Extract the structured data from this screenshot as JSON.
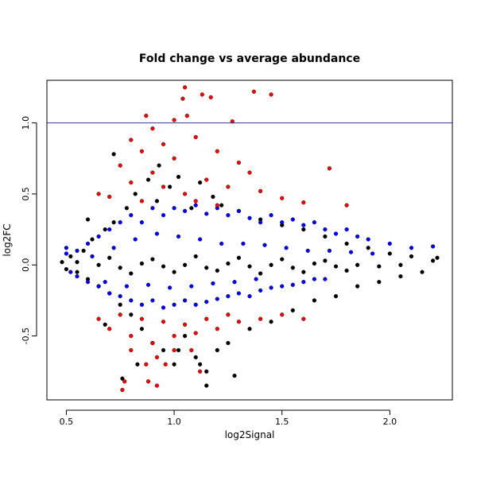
{
  "chart_data": {
    "type": "scatter",
    "title": "Fold change vs average abundance",
    "xlabel": "log2Signal",
    "ylabel": "log2FC",
    "xlim": [
      0.41,
      2.29
    ],
    "ylim": [
      -0.95,
      1.3
    ],
    "xticks": [
      0.5,
      1.0,
      1.5,
      2.0
    ],
    "xtick_labels": [
      "0.5",
      "1.0",
      "1.5",
      "2.0"
    ],
    "yticks": [
      -0.5,
      0.0,
      0.5,
      1.0
    ],
    "ytick_labels": [
      "-0.5",
      "0.0",
      "0.5",
      "1.0"
    ],
    "grid": false,
    "legend": "none",
    "reference_lines": [
      {
        "orientation": "horizontal",
        "y": 1.0,
        "color": "#3a3a99"
      }
    ],
    "series": [
      {
        "color": "#000000",
        "points": [
          [
            0.48,
            0.02
          ],
          [
            0.5,
            -0.03
          ],
          [
            0.52,
            0.06
          ],
          [
            0.55,
            -0.05
          ],
          [
            0.58,
            0.1
          ],
          [
            0.6,
            -0.1
          ],
          [
            0.62,
            0.18
          ],
          [
            0.65,
            -0.15
          ],
          [
            0.68,
            0.25
          ],
          [
            0.7,
            -0.2
          ],
          [
            0.72,
            0.3
          ],
          [
            0.75,
            -0.28
          ],
          [
            0.78,
            0.4
          ],
          [
            0.8,
            -0.35
          ],
          [
            0.82,
            0.5
          ],
          [
            0.85,
            -0.45
          ],
          [
            0.88,
            0.6
          ],
          [
            0.9,
            -0.55
          ],
          [
            0.92,
            0.45
          ],
          [
            0.95,
            -0.6
          ],
          [
            0.98,
            0.55
          ],
          [
            1.0,
            -0.7
          ],
          [
            1.02,
            0.62
          ],
          [
            1.05,
            -0.5
          ],
          [
            1.08,
            0.4
          ],
          [
            1.1,
            -0.65
          ],
          [
            1.12,
            0.58
          ],
          [
            1.15,
            -0.75
          ],
          [
            1.18,
            0.48
          ],
          [
            1.2,
            -0.6
          ],
          [
            1.22,
            0.42
          ],
          [
            1.25,
            -0.55
          ],
          [
            1.3,
            0.38
          ],
          [
            1.35,
            -0.45
          ],
          [
            1.4,
            0.32
          ],
          [
            1.45,
            -0.4
          ],
          [
            1.5,
            0.28
          ],
          [
            1.55,
            -0.32
          ],
          [
            1.6,
            0.25
          ],
          [
            1.65,
            -0.25
          ],
          [
            1.7,
            0.2
          ],
          [
            1.75,
            -0.22
          ],
          [
            1.8,
            0.15
          ],
          [
            1.85,
            -0.15
          ],
          [
            1.9,
            0.12
          ],
          [
            1.95,
            -0.12
          ],
          [
            2.0,
            0.08
          ],
          [
            2.05,
            -0.08
          ],
          [
            2.1,
            0.06
          ],
          [
            2.15,
            -0.05
          ],
          [
            2.2,
            0.03
          ],
          [
            2.22,
            0.05
          ],
          [
            0.55,
            0.02
          ],
          [
            0.65,
            0.0
          ],
          [
            0.75,
            -0.02
          ],
          [
            0.85,
            0.01
          ],
          [
            0.95,
            -0.01
          ],
          [
            1.05,
            0.0
          ],
          [
            1.15,
            -0.02
          ],
          [
            1.25,
            0.01
          ],
          [
            1.35,
            -0.01
          ],
          [
            1.45,
            0.0
          ],
          [
            1.55,
            -0.02
          ],
          [
            1.65,
            0.01
          ],
          [
            1.75,
            -0.01
          ],
          [
            1.85,
            0.0
          ],
          [
            1.95,
            -0.01
          ],
          [
            2.05,
            0.0
          ],
          [
            0.7,
            0.05
          ],
          [
            0.8,
            -0.06
          ],
          [
            0.9,
            0.04
          ],
          [
            1.0,
            -0.05
          ],
          [
            1.1,
            0.06
          ],
          [
            1.2,
            -0.04
          ],
          [
            1.3,
            0.05
          ],
          [
            1.4,
            -0.06
          ],
          [
            1.5,
            0.04
          ],
          [
            1.6,
            -0.05
          ],
          [
            1.7,
            0.03
          ],
          [
            1.8,
            -0.04
          ],
          [
            0.76,
            -0.8
          ],
          [
            1.15,
            -0.85
          ],
          [
            0.72,
            0.78
          ],
          [
            0.68,
            -0.42
          ],
          [
            0.6,
            0.32
          ],
          [
            1.28,
            -0.78
          ],
          [
            0.83,
            -0.7
          ],
          [
            1.02,
            -0.6
          ],
          [
            0.93,
            0.7
          ],
          [
            1.12,
            -0.7
          ]
        ]
      },
      {
        "color": "#0000ff",
        "points": [
          [
            0.5,
            0.08
          ],
          [
            0.55,
            0.1
          ],
          [
            0.6,
            0.15
          ],
          [
            0.65,
            0.2
          ],
          [
            0.7,
            0.25
          ],
          [
            0.75,
            0.3
          ],
          [
            0.8,
            0.35
          ],
          [
            0.85,
            0.3
          ],
          [
            0.9,
            0.4
          ],
          [
            0.95,
            0.35
          ],
          [
            1.0,
            0.4
          ],
          [
            1.05,
            0.38
          ],
          [
            1.1,
            0.42
          ],
          [
            1.15,
            0.36
          ],
          [
            1.2,
            0.4
          ],
          [
            1.25,
            0.35
          ],
          [
            1.3,
            0.38
          ],
          [
            1.35,
            0.33
          ],
          [
            1.4,
            0.3
          ],
          [
            1.45,
            0.35
          ],
          [
            1.5,
            0.3
          ],
          [
            1.55,
            0.32
          ],
          [
            1.6,
            0.28
          ],
          [
            1.65,
            0.3
          ],
          [
            1.7,
            0.25
          ],
          [
            1.75,
            0.22
          ],
          [
            1.8,
            0.25
          ],
          [
            1.85,
            0.2
          ],
          [
            1.9,
            0.18
          ],
          [
            2.0,
            0.15
          ],
          [
            2.1,
            0.12
          ],
          [
            2.2,
            0.13
          ],
          [
            0.55,
            -0.08
          ],
          [
            0.6,
            -0.12
          ],
          [
            0.65,
            -0.15
          ],
          [
            0.7,
            -0.2
          ],
          [
            0.75,
            -0.22
          ],
          [
            0.8,
            -0.25
          ],
          [
            0.85,
            -0.28
          ],
          [
            0.9,
            -0.25
          ],
          [
            0.95,
            -0.3
          ],
          [
            1.0,
            -0.28
          ],
          [
            1.05,
            -0.25
          ],
          [
            1.1,
            -0.28
          ],
          [
            1.15,
            -0.26
          ],
          [
            1.2,
            -0.24
          ],
          [
            1.25,
            -0.22
          ],
          [
            1.3,
            -0.2
          ],
          [
            1.35,
            -0.22
          ],
          [
            1.4,
            -0.18
          ],
          [
            1.45,
            -0.16
          ],
          [
            1.5,
            -0.15
          ],
          [
            1.55,
            -0.14
          ],
          [
            1.6,
            -0.12
          ],
          [
            1.65,
            -0.1
          ],
          [
            1.7,
            -0.1
          ],
          [
            0.5,
            0.12
          ],
          [
            0.52,
            -0.05
          ],
          [
            0.62,
            0.06
          ],
          [
            0.72,
            0.12
          ],
          [
            0.82,
            0.18
          ],
          [
            0.92,
            0.22
          ],
          [
            1.02,
            0.2
          ],
          [
            1.12,
            0.18
          ],
          [
            1.22,
            0.15
          ],
          [
            1.32,
            0.15
          ],
          [
            1.42,
            0.14
          ],
          [
            1.52,
            0.12
          ],
          [
            1.62,
            0.1
          ],
          [
            1.72,
            0.1
          ],
          [
            1.82,
            0.09
          ],
          [
            1.92,
            0.08
          ],
          [
            0.68,
            -0.12
          ],
          [
            0.78,
            -0.15
          ],
          [
            0.88,
            -0.14
          ],
          [
            0.98,
            -0.16
          ],
          [
            1.08,
            -0.15
          ],
          [
            1.18,
            -0.13
          ],
          [
            1.28,
            -0.12
          ],
          [
            1.38,
            -0.1
          ]
        ]
      },
      {
        "color": "#ff0000",
        "points": [
          [
            1.05,
            1.25
          ],
          [
            1.37,
            1.22
          ],
          [
            1.13,
            1.2
          ],
          [
            1.45,
            1.2
          ],
          [
            1.17,
            1.18
          ],
          [
            1.04,
            1.17
          ],
          [
            0.87,
            1.05
          ],
          [
            1.06,
            1.05
          ],
          [
            1.0,
            1.02
          ],
          [
            1.27,
            1.01
          ],
          [
            0.9,
            0.96
          ],
          [
            1.1,
            0.9
          ],
          [
            0.95,
            0.85
          ],
          [
            0.8,
            0.88
          ],
          [
            1.2,
            0.8
          ],
          [
            0.85,
            0.8
          ],
          [
            1.3,
            0.72
          ],
          [
            1.0,
            0.75
          ],
          [
            0.75,
            0.7
          ],
          [
            1.35,
            0.65
          ],
          [
            0.9,
            0.65
          ],
          [
            1.72,
            0.68
          ],
          [
            1.15,
            0.6
          ],
          [
            0.8,
            0.58
          ],
          [
            1.25,
            0.55
          ],
          [
            0.95,
            0.55
          ],
          [
            1.4,
            0.52
          ],
          [
            1.05,
            0.5
          ],
          [
            0.7,
            0.48
          ],
          [
            1.5,
            0.47
          ],
          [
            0.85,
            0.45
          ],
          [
            1.6,
            0.44
          ],
          [
            1.2,
            0.42
          ],
          [
            1.8,
            0.42
          ],
          [
            0.65,
            0.5
          ],
          [
            1.1,
            0.45
          ],
          [
            0.75,
            -0.35
          ],
          [
            0.85,
            -0.38
          ],
          [
            0.95,
            -0.4
          ],
          [
            1.05,
            -0.42
          ],
          [
            1.15,
            -0.38
          ],
          [
            1.25,
            -0.35
          ],
          [
            0.7,
            -0.45
          ],
          [
            0.8,
            -0.5
          ],
          [
            0.9,
            -0.55
          ],
          [
            1.0,
            -0.5
          ],
          [
            1.1,
            -0.48
          ],
          [
            1.2,
            -0.45
          ],
          [
            1.3,
            -0.4
          ],
          [
            1.4,
            -0.38
          ],
          [
            1.5,
            -0.35
          ],
          [
            1.6,
            -0.38
          ],
          [
            0.65,
            -0.38
          ],
          [
            0.8,
            -0.6
          ],
          [
            0.92,
            -0.65
          ],
          [
            0.87,
            -0.7
          ],
          [
            1.0,
            -0.6
          ],
          [
            0.88,
            -0.82
          ],
          [
            0.92,
            -0.85
          ],
          [
            1.12,
            -0.75
          ],
          [
            0.76,
            -0.88
          ],
          [
            0.77,
            -0.82
          ],
          [
            1.08,
            -0.6
          ],
          [
            0.96,
            -0.7
          ]
        ]
      }
    ]
  }
}
